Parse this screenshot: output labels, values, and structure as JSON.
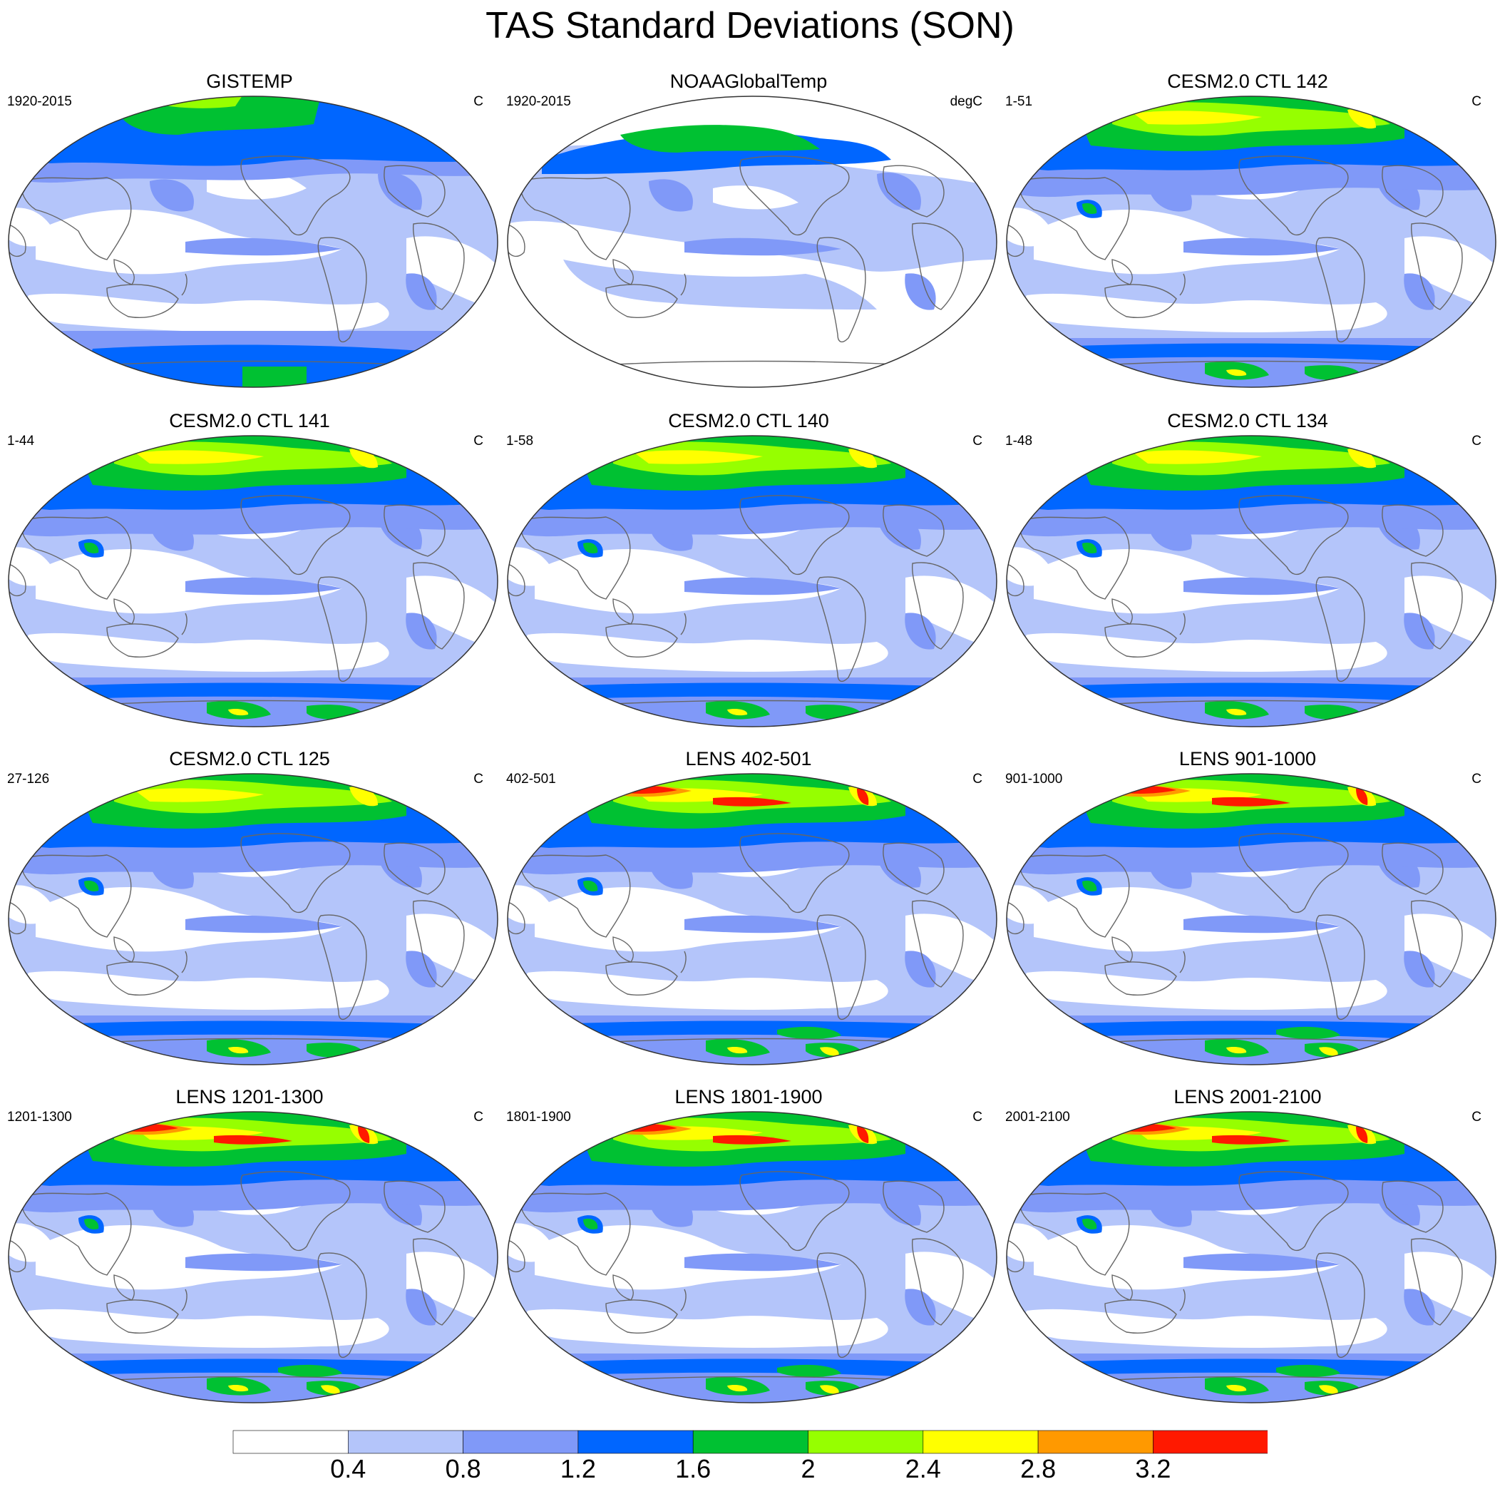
{
  "title": "TAS Standard Deviations (SON)",
  "panels": [
    {
      "title": "GISTEMP",
      "period": "1920-2015",
      "units": "C",
      "style": "obs_gistemp"
    },
    {
      "title": "NOAAGlobalTemp",
      "period": "1920-2015",
      "units": "degC",
      "style": "obs_noaa"
    },
    {
      "title": "CESM2.0 CTL 142",
      "period": "1-51",
      "units": "C",
      "style": "model"
    },
    {
      "title": "CESM2.0 CTL 141",
      "period": "1-44",
      "units": "C",
      "style": "model"
    },
    {
      "title": "CESM2.0 CTL 140",
      "period": "1-58",
      "units": "C",
      "style": "model"
    },
    {
      "title": "CESM2.0 CTL 134",
      "period": "1-48",
      "units": "C",
      "style": "model"
    },
    {
      "title": "CESM2.0 CTL 125",
      "period": "27-126",
      "units": "C",
      "style": "model"
    },
    {
      "title": "LENS 402-501",
      "period": "402-501",
      "units": "C",
      "style": "lens"
    },
    {
      "title": "LENS 901-1000",
      "period": "901-1000",
      "units": "C",
      "style": "lens"
    },
    {
      "title": "LENS 1201-1300",
      "period": "1201-1300",
      "units": "C",
      "style": "lens"
    },
    {
      "title": "LENS 1801-1900",
      "period": "1801-1900",
      "units": "C",
      "style": "lens"
    },
    {
      "title": "LENS 2001-2100",
      "period": "2001-2100",
      "units": "C",
      "style": "lens"
    }
  ],
  "colorbar": {
    "levels": [
      "0.4",
      "0.8",
      "1.2",
      "1.6",
      "2",
      "2.4",
      "2.8",
      "3.2"
    ],
    "colors": [
      "#ffffff",
      "#b4c5fa",
      "#8099f8",
      "#0066ff",
      "#00c132",
      "#96ff00",
      "#ffff00",
      "#ff9900",
      "#ff1900"
    ]
  }
}
